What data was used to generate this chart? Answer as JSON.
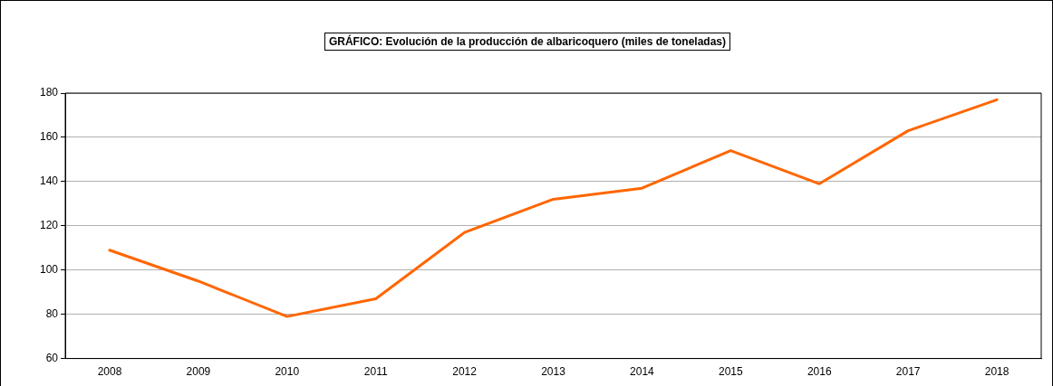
{
  "chart_data": {
    "type": "line",
    "title": "GRÁFICO: Evolución de la producción de albaricoquero (miles de toneladas)",
    "categories": [
      "2008",
      "2009",
      "2010",
      "2011",
      "2012",
      "2013",
      "2014",
      "2015",
      "2016",
      "2017",
      "2018"
    ],
    "series": [
      {
        "color": "#ff6600",
        "values": [
          109,
          95,
          79,
          87,
          117,
          132,
          137,
          154,
          139,
          163,
          177
        ]
      }
    ],
    "ylim": [
      60,
      180
    ],
    "yticks": [
      60,
      80,
      100,
      120,
      140,
      160,
      180
    ],
    "grid": "y",
    "legend": false,
    "marker": "none",
    "line_style": "solid"
  }
}
